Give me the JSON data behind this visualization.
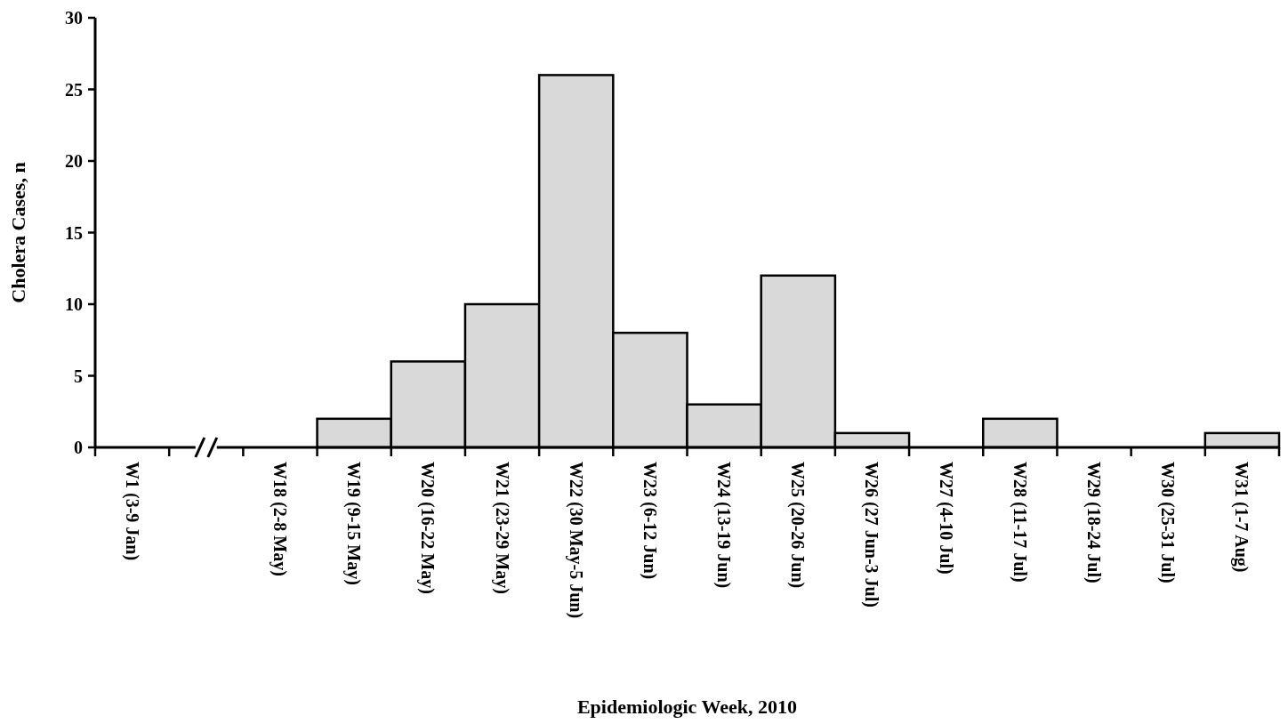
{
  "chart_data": {
    "type": "bar",
    "xlabel": "Epidemiologic Week, 2010",
    "ylabel": "Cholera Cases, n",
    "categories": [
      "W1 (3-9 Jan)",
      null,
      "W18 (2-8 May)",
      "W19 (9-15 May)",
      "W20 (16-22 May)",
      "W21 (23-29 May)",
      "W22 (30 May-5 Jun)",
      "W23 (6-12 Jun)",
      "W24 (13-19 Jun)",
      "W25 (20-26 Jun)",
      "W26 (27 Jun-3 Jul)",
      "W27 (4-10 Jul)",
      "W28 (11-17 Jul)",
      "W29 (18-24 Jul)",
      "W30 (25-31 Jul)",
      "W31 (1-7 Aug)"
    ],
    "values": [
      0,
      null,
      0,
      2,
      6,
      10,
      26,
      8,
      3,
      12,
      1,
      0,
      2,
      0,
      0,
      1
    ],
    "color": "#d9d9d9",
    "ylim": [
      0,
      30
    ],
    "yticks": [
      0,
      5,
      10,
      15,
      20,
      25,
      30
    ],
    "grid": false
  }
}
